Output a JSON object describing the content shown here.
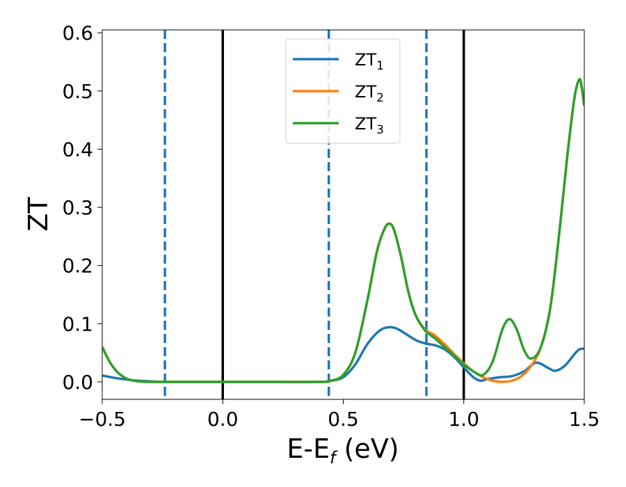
{
  "chart_data": {
    "type": "line",
    "xlabel": {
      "main": "E-E",
      "sub": "f",
      "suffix": " (eV)"
    },
    "ylabel": "ZT",
    "xlim": [
      -0.5,
      1.5
    ],
    "ylim": [
      -0.03,
      0.605
    ],
    "x_ticks": [
      {
        "value": -0.5,
        "label": "−0.5"
      },
      {
        "value": 0.0,
        "label": "0.0"
      },
      {
        "value": 0.5,
        "label": "0.5"
      },
      {
        "value": 1.0,
        "label": "1.0"
      },
      {
        "value": 1.5,
        "label": "1.5"
      }
    ],
    "y_ticks": [
      {
        "value": 0.0,
        "label": "0.0"
      },
      {
        "value": 0.1,
        "label": "0.1"
      },
      {
        "value": 0.2,
        "label": "0.2"
      },
      {
        "value": 0.3,
        "label": "0.3"
      },
      {
        "value": 0.4,
        "label": "0.4"
      },
      {
        "value": 0.5,
        "label": "0.5"
      },
      {
        "value": 0.6,
        "label": "0.6"
      }
    ],
    "grid": false,
    "legend_position": "top-center",
    "vlines_solid": [
      0.0,
      1.0
    ],
    "vlines_dashed": [
      -0.24,
      0.44,
      0.845
    ],
    "vline_solid_color": "#000000",
    "vline_dashed_color": "#1f77b4",
    "series": [
      {
        "name": "ZT",
        "sub": "1",
        "color": "#1f77b4",
        "x": [
          -0.5,
          -0.45,
          -0.4,
          -0.35,
          -0.3,
          -0.25,
          -0.2,
          0.0,
          0.2,
          0.4,
          0.45,
          0.5,
          0.55,
          0.6,
          0.65,
          0.69,
          0.72,
          0.75,
          0.8,
          0.84,
          0.88,
          0.92,
          0.96,
          1.0,
          1.04,
          1.07,
          1.1,
          1.15,
          1.2,
          1.25,
          1.3,
          1.35,
          1.38,
          1.42,
          1.46,
          1.48,
          1.5
        ],
        "y": [
          0.011,
          0.007,
          0.004,
          0.002,
          0.001,
          0.0,
          0.0,
          0.0,
          0.0,
          0.0,
          0.002,
          0.008,
          0.03,
          0.065,
          0.088,
          0.094,
          0.092,
          0.085,
          0.072,
          0.066,
          0.063,
          0.056,
          0.043,
          0.025,
          0.008,
          0.002,
          0.005,
          0.008,
          0.01,
          0.018,
          0.033,
          0.024,
          0.019,
          0.028,
          0.048,
          0.056,
          0.057
        ]
      },
      {
        "name": "ZT",
        "sub": "2",
        "color": "#ff7f0e",
        "x": [
          -0.5,
          -0.47,
          -0.44,
          -0.41,
          -0.38,
          -0.35,
          -0.3,
          -0.2,
          0.0,
          0.2,
          0.4,
          0.45,
          0.5,
          0.55,
          0.6,
          0.64,
          0.67,
          0.69,
          0.71,
          0.74,
          0.77,
          0.8,
          0.84,
          0.88,
          0.92,
          0.96,
          1.0,
          1.04,
          1.08,
          1.12,
          1.16,
          1.2,
          1.24,
          1.28,
          1.32,
          1.36,
          1.4,
          1.43,
          1.46,
          1.48,
          1.49,
          1.5
        ],
        "y": [
          0.06,
          0.035,
          0.018,
          0.008,
          0.003,
          0.001,
          0.0,
          0.0,
          0.0,
          0.0,
          0.0,
          0.002,
          0.012,
          0.05,
          0.14,
          0.225,
          0.262,
          0.272,
          0.262,
          0.215,
          0.155,
          0.115,
          0.09,
          0.08,
          0.065,
          0.048,
          0.032,
          0.018,
          0.008,
          0.002,
          0.0,
          0.002,
          0.01,
          0.028,
          0.06,
          0.13,
          0.27,
          0.39,
          0.49,
          0.52,
          0.505,
          0.475
        ]
      },
      {
        "name": "ZT",
        "sub": "3",
        "color": "#2ca02c",
        "x": [
          -0.5,
          -0.47,
          -0.44,
          -0.41,
          -0.38,
          -0.35,
          -0.3,
          -0.2,
          0.0,
          0.2,
          0.4,
          0.45,
          0.5,
          0.55,
          0.6,
          0.64,
          0.67,
          0.69,
          0.71,
          0.74,
          0.77,
          0.8,
          0.84,
          0.88,
          0.92,
          0.96,
          1.0,
          1.04,
          1.08,
          1.12,
          1.16,
          1.19,
          1.22,
          1.25,
          1.28,
          1.32,
          1.36,
          1.4,
          1.43,
          1.46,
          1.48,
          1.49,
          1.5
        ],
        "y": [
          0.06,
          0.035,
          0.018,
          0.008,
          0.003,
          0.001,
          0.0,
          0.0,
          0.0,
          0.0,
          0.0,
          0.002,
          0.012,
          0.05,
          0.14,
          0.225,
          0.262,
          0.272,
          0.262,
          0.215,
          0.155,
          0.115,
          0.088,
          0.075,
          0.06,
          0.045,
          0.03,
          0.018,
          0.012,
          0.035,
          0.09,
          0.108,
          0.09,
          0.055,
          0.04,
          0.06,
          0.13,
          0.27,
          0.39,
          0.49,
          0.52,
          0.505,
          0.475
        ]
      }
    ]
  }
}
